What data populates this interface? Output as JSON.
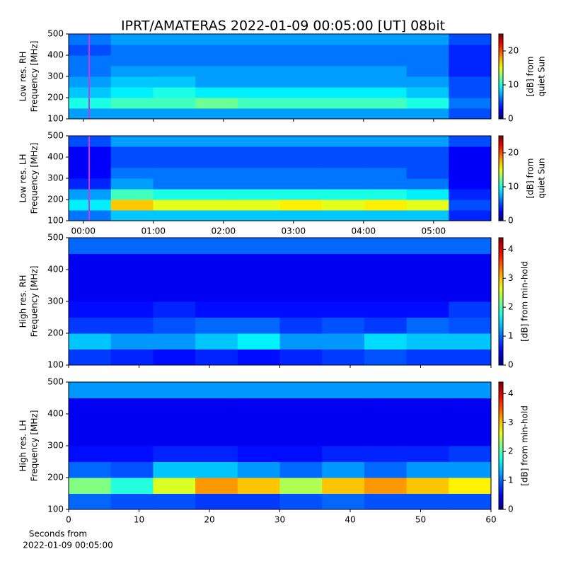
{
  "chart_data": [
    {
      "type": "heatmap",
      "title": "IPRT/AMATERAS 2022-01-09 00:05:00 [UT]   08bit",
      "ylabel": [
        "Low res. RH",
        "Frequency [MHz]"
      ],
      "xlim": [
        -0.21,
        5.82
      ],
      "xticks": [
        0,
        1,
        2,
        3,
        4,
        5
      ],
      "ylim": [
        100,
        500
      ],
      "yticks": [
        100,
        200,
        300,
        400,
        500
      ],
      "marker_x": 0.083,
      "marker_color": "#d633d6",
      "clim": [
        0,
        25
      ],
      "cticks": [
        0,
        10,
        20
      ],
      "clabel": [
        "[dB] from",
        "quiet Sun"
      ],
      "z": [
        [
          7,
          7,
          7,
          7,
          7,
          7,
          7,
          7,
          7,
          5
        ],
        [
          10,
          11,
          11,
          12,
          11,
          11,
          11,
          11,
          10,
          6
        ],
        [
          8,
          9,
          10,
          9,
          9,
          9,
          9,
          9,
          8,
          5
        ],
        [
          7,
          8,
          8,
          7,
          7,
          7,
          7,
          7,
          7,
          5
        ],
        [
          6,
          7,
          7,
          7,
          7,
          7,
          7,
          7,
          6,
          4
        ],
        [
          6,
          6,
          6,
          6,
          6,
          6,
          6,
          6,
          6,
          4
        ],
        [
          5,
          6,
          6,
          6,
          6,
          6,
          6,
          6,
          6,
          4
        ],
        [
          6,
          7,
          7,
          7,
          7,
          7,
          7,
          7,
          7,
          5
        ]
      ]
    },
    {
      "type": "heatmap",
      "ylabel": [
        "Low res. LH",
        "Frequency [MHz]"
      ],
      "xlim": [
        -0.21,
        5.82
      ],
      "xticks": [
        {
          "value": 0,
          "label": "00:00"
        },
        {
          "value": 1,
          "label": "01:00"
        },
        {
          "value": 2,
          "label": "02:00"
        },
        {
          "value": 3,
          "label": "03:00"
        },
        {
          "value": 4,
          "label": "04:00"
        },
        {
          "value": 5,
          "label": "05:00"
        }
      ],
      "ylim": [
        100,
        500
      ],
      "yticks": [
        100,
        200,
        300,
        400,
        500
      ],
      "marker_x": 0.083,
      "marker_color": "#d633d6",
      "clim": [
        0,
        25
      ],
      "cticks": [
        0,
        10,
        20
      ],
      "clabel": [
        "[dB] from",
        "quiet Sun"
      ],
      "z": [
        [
          6,
          8,
          8,
          8,
          8,
          8,
          8,
          8,
          8,
          4
        ],
        [
          9,
          17,
          15,
          15,
          15,
          16,
          15,
          16,
          15,
          5
        ],
        [
          7,
          11,
          10,
          10,
          10,
          10,
          10,
          10,
          9,
          4
        ],
        [
          4,
          7,
          6,
          6,
          6,
          6,
          6,
          6,
          6,
          3
        ],
        [
          3,
          6,
          6,
          6,
          6,
          6,
          6,
          6,
          5,
          3
        ],
        [
          3,
          5,
          5,
          5,
          5,
          5,
          5,
          5,
          5,
          3
        ],
        [
          3,
          5,
          5,
          5,
          5,
          5,
          5,
          5,
          5,
          3
        ],
        [
          5,
          7,
          7,
          7,
          7,
          7,
          7,
          7,
          7,
          5
        ]
      ]
    },
    {
      "type": "heatmap",
      "ylabel": [
        "High res. RH",
        "Frequency [MHz]"
      ],
      "xlim": [
        0,
        60
      ],
      "xticks": [
        0,
        10,
        20,
        30,
        40,
        50,
        60
      ],
      "ylim": [
        100,
        500
      ],
      "yticks": [
        100,
        200,
        300,
        400,
        500
      ],
      "clim": [
        0,
        4.4
      ],
      "cticks": [
        0,
        1,
        2,
        3,
        4
      ],
      "clabel": [
        "[dB] from min-hold"
      ],
      "z": [
        [
          0.8,
          0.7,
          0.6,
          0.7,
          0.6,
          0.7,
          0.8,
          0.9,
          0.8,
          0.8
        ],
        [
          1.4,
          1.2,
          1.2,
          1.4,
          1.6,
          1.2,
          1.2,
          1.5,
          1.4,
          1.4
        ],
        [
          0.8,
          0.8,
          0.9,
          1.0,
          1.0,
          0.8,
          0.9,
          0.8,
          1.0,
          0.9
        ],
        [
          0.6,
          0.6,
          0.7,
          0.6,
          0.6,
          0.6,
          0.6,
          0.6,
          0.6,
          0.8
        ],
        [
          0.5,
          0.5,
          0.5,
          0.5,
          0.5,
          0.5,
          0.5,
          0.5,
          0.5,
          0.5
        ],
        [
          0.5,
          0.5,
          0.5,
          0.5,
          0.5,
          0.5,
          0.5,
          0.5,
          0.5,
          0.5
        ],
        [
          0.5,
          0.5,
          0.5,
          0.5,
          0.5,
          0.5,
          0.5,
          0.5,
          0.5,
          0.5
        ],
        [
          1.0,
          1.0,
          1.0,
          1.0,
          1.0,
          1.0,
          1.0,
          1.0,
          1.0,
          1.0
        ]
      ]
    },
    {
      "type": "heatmap",
      "ylabel": [
        "High res. LH",
        "Frequency [MHz]"
      ],
      "xlabel": [
        "Seconds from",
        "2022-01-09 00:05:00"
      ],
      "xlim": [
        0,
        60
      ],
      "xticks": [
        0,
        10,
        20,
        30,
        40,
        50,
        60
      ],
      "ylim": [
        100,
        500
      ],
      "yticks": [
        100,
        200,
        300,
        400,
        500
      ],
      "clim": [
        0,
        4.4
      ],
      "cticks": [
        0,
        1,
        2,
        3,
        4
      ],
      "clabel": [
        "[dB] from min-hold"
      ],
      "z": [
        [
          1.0,
          0.9,
          0.9,
          0.8,
          0.8,
          0.9,
          1.0,
          0.9,
          0.9,
          0.9
        ],
        [
          2.2,
          1.8,
          2.6,
          3.2,
          3.0,
          2.4,
          3.0,
          3.2,
          3.0,
          2.8
        ],
        [
          1.0,
          0.9,
          1.4,
          1.4,
          1.2,
          1.0,
          1.2,
          1.0,
          1.2,
          1.2
        ],
        [
          0.6,
          0.6,
          0.7,
          0.7,
          0.6,
          0.6,
          0.7,
          0.7,
          0.7,
          0.8
        ],
        [
          0.5,
          0.5,
          0.5,
          0.5,
          0.5,
          0.5,
          0.5,
          0.5,
          0.5,
          0.5
        ],
        [
          0.5,
          0.5,
          0.5,
          0.5,
          0.5,
          0.5,
          0.5,
          0.5,
          0.5,
          0.5
        ],
        [
          0.5,
          0.5,
          0.5,
          0.5,
          0.5,
          0.5,
          0.5,
          0.5,
          0.5,
          0.5
        ],
        [
          1.2,
          1.2,
          1.2,
          1.2,
          1.2,
          1.2,
          1.2,
          1.2,
          1.2,
          1.2
        ]
      ]
    }
  ]
}
